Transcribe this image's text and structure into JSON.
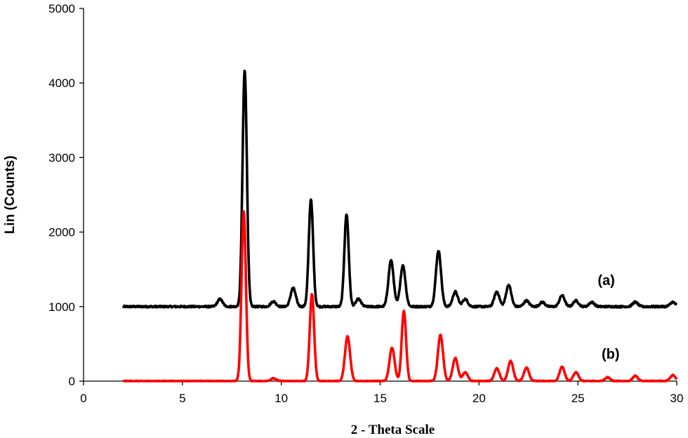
{
  "chart_data": {
    "type": "line",
    "xlabel": "2 - Theta Scale",
    "ylabel": "Lin (Counts)",
    "xlim": [
      0,
      30
    ],
    "ylim": [
      0,
      5000
    ],
    "xticks": [
      "0",
      "5",
      "10",
      "15",
      "20",
      "25",
      "30"
    ],
    "yticks": [
      "0",
      "1000",
      "2000",
      "3000",
      "4000",
      "5000"
    ],
    "grid": false,
    "series": [
      {
        "name": "(a)",
        "color": "#000000",
        "x_range": [
          2,
          30
        ],
        "baseline": 1000,
        "peaks": [
          {
            "x": 6.9,
            "y": 1100
          },
          {
            "x": 8.15,
            "y": 4170
          },
          {
            "x": 9.6,
            "y": 1070
          },
          {
            "x": 10.6,
            "y": 1250
          },
          {
            "x": 11.5,
            "y": 2440
          },
          {
            "x": 13.3,
            "y": 2240
          },
          {
            "x": 13.9,
            "y": 1100
          },
          {
            "x": 15.55,
            "y": 1620
          },
          {
            "x": 16.15,
            "y": 1550
          },
          {
            "x": 17.95,
            "y": 1750
          },
          {
            "x": 18.8,
            "y": 1200
          },
          {
            "x": 19.3,
            "y": 1100
          },
          {
            "x": 20.9,
            "y": 1200
          },
          {
            "x": 21.5,
            "y": 1290
          },
          {
            "x": 22.4,
            "y": 1080
          },
          {
            "x": 23.2,
            "y": 1060
          },
          {
            "x": 24.2,
            "y": 1150
          },
          {
            "x": 24.9,
            "y": 1080
          },
          {
            "x": 25.7,
            "y": 1060
          },
          {
            "x": 27.9,
            "y": 1060
          },
          {
            "x": 29.8,
            "y": 1060
          }
        ]
      },
      {
        "name": "(b)",
        "color": "#ff0000",
        "x_range": [
          2,
          30
        ],
        "baseline": 0,
        "peaks": [
          {
            "x": 8.1,
            "y": 2280
          },
          {
            "x": 9.6,
            "y": 40
          },
          {
            "x": 11.55,
            "y": 1170
          },
          {
            "x": 13.35,
            "y": 600
          },
          {
            "x": 15.6,
            "y": 450
          },
          {
            "x": 16.2,
            "y": 940
          },
          {
            "x": 18.05,
            "y": 620
          },
          {
            "x": 18.8,
            "y": 310
          },
          {
            "x": 19.3,
            "y": 120
          },
          {
            "x": 20.9,
            "y": 170
          },
          {
            "x": 21.6,
            "y": 270
          },
          {
            "x": 22.4,
            "y": 180
          },
          {
            "x": 24.2,
            "y": 190
          },
          {
            "x": 24.9,
            "y": 120
          },
          {
            "x": 26.5,
            "y": 50
          },
          {
            "x": 27.9,
            "y": 70
          },
          {
            "x": 29.8,
            "y": 80
          }
        ]
      }
    ],
    "annotations": [
      "(a)",
      "(b)"
    ]
  }
}
